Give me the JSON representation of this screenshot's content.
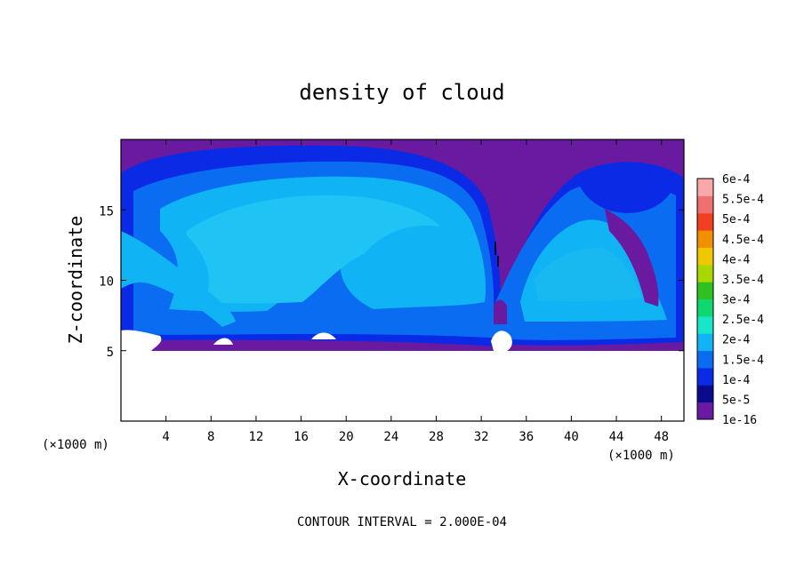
{
  "chart_data": {
    "type": "heatmap",
    "title": "density of cloud",
    "xlabel": "X-coordinate",
    "ylabel": "Z-coordinate",
    "x_unit": "(×1000 m)",
    "x_range": [
      0,
      50
    ],
    "y_range": [
      0,
      20
    ],
    "x_ticks": [
      4,
      8,
      12,
      16,
      20,
      24,
      28,
      32,
      36,
      40,
      44,
      48
    ],
    "y_ticks": [
      5,
      10,
      15
    ],
    "colorbar": {
      "levels": [
        "1e-16",
        "5e-5",
        "1e-4",
        "1.5e-4",
        "2e-4",
        "2.5e-4",
        "3e-4",
        "3.5e-4",
        "4e-4",
        "4.5e-4",
        "5e-4",
        "5.5e-4",
        "6e-4"
      ],
      "colors": [
        "#6a1aa0",
        "#0a0a8c",
        "#0a2ae6",
        "#0a6cf0",
        "#10b4f4",
        "#18e6c8",
        "#10d870",
        "#30c020",
        "#a8d800",
        "#f0c800",
        "#f09000",
        "#f04020",
        "#f07070",
        "#f8a8a8"
      ]
    },
    "note": "CONTOUR INTERVAL = 2.000E-04"
  }
}
